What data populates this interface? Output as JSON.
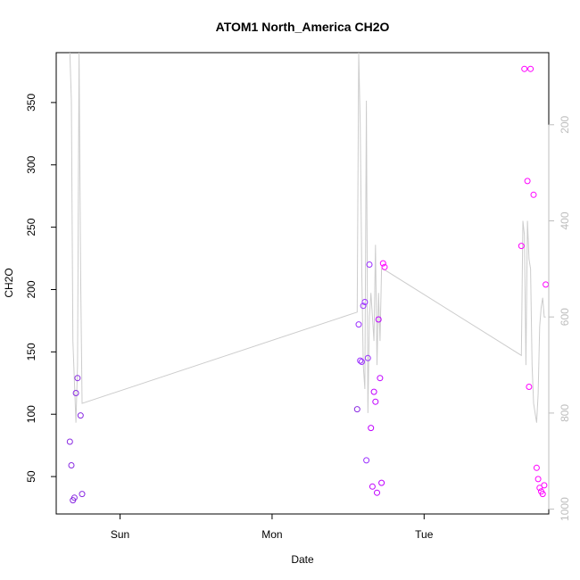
{
  "chart_data": {
    "type": "scatter",
    "title": "ATOM1 North_America CH2O",
    "xlabel": "Date",
    "ylabel": "CH2O",
    "xlim": [
      -0.42,
      2.82
    ],
    "ylim": [
      20,
      390
    ],
    "x_ticks": [
      {
        "value": 0,
        "label": "Sun"
      },
      {
        "value": 1,
        "label": "Mon"
      },
      {
        "value": 2,
        "label": "Tue"
      }
    ],
    "y_ticks": [
      50,
      100,
      150,
      200,
      250,
      300,
      350
    ],
    "y2_ticks": [
      200,
      400,
      600,
      800,
      1000
    ],
    "y2_lim": [
      1010,
      50
    ],
    "grid": false,
    "series": [
      {
        "kind": "points",
        "colors": [
          "#8a2be2",
          "#9b30ff",
          "#c000ff",
          "#ff00ff"
        ],
        "x": [
          -0.33,
          -0.32,
          -0.31,
          -0.3,
          -0.29,
          -0.28,
          -0.26,
          -0.25,
          1.56,
          1.57,
          1.58,
          1.59,
          1.6,
          1.61,
          1.62,
          1.63,
          1.64,
          1.65,
          1.66,
          1.67,
          1.68,
          1.69,
          1.7,
          1.71,
          1.72,
          1.73,
          1.74,
          2.64,
          2.66,
          2.68,
          2.69,
          2.7,
          2.72,
          2.74,
          2.75,
          2.76,
          2.77,
          2.78,
          2.79,
          2.8
        ],
        "y": [
          78,
          59,
          31,
          33,
          117,
          129,
          99,
          36,
          104,
          172,
          143,
          142,
          187,
          190,
          63,
          145,
          220,
          89,
          42,
          118,
          110,
          37,
          176,
          129,
          45,
          221,
          218,
          235,
          377,
          287,
          122,
          377,
          276,
          57,
          48,
          41,
          38,
          36,
          43,
          204
        ]
      },
      {
        "kind": "line",
        "axis": "right",
        "color": "#cccccc",
        "x": [
          -0.33,
          -0.32,
          -0.31,
          -0.29,
          -0.28,
          -0.27,
          -0.26,
          -0.25,
          1.56,
          1.57,
          1.58,
          1.59,
          1.6,
          1.61,
          1.62,
          1.63,
          1.64,
          1.65,
          1.66,
          1.67,
          1.68,
          1.69,
          1.7,
          1.71,
          1.72,
          1.73,
          2.64,
          2.65,
          2.66,
          2.67,
          2.68,
          2.69,
          2.7,
          2.71,
          2.72,
          2.73,
          2.74,
          2.75,
          2.76,
          2.77,
          2.78,
          2.79,
          2.8
        ],
        "y": [
          50,
          150,
          650,
          820,
          700,
          50,
          500,
          780,
          590,
          50,
          200,
          500,
          700,
          750,
          150,
          800,
          600,
          550,
          600,
          650,
          450,
          700,
          550,
          650,
          500,
          500,
          680,
          400,
          430,
          700,
          400,
          480,
          500,
          700,
          780,
          800,
          820,
          760,
          620,
          580,
          560,
          600,
          600
        ]
      }
    ]
  }
}
